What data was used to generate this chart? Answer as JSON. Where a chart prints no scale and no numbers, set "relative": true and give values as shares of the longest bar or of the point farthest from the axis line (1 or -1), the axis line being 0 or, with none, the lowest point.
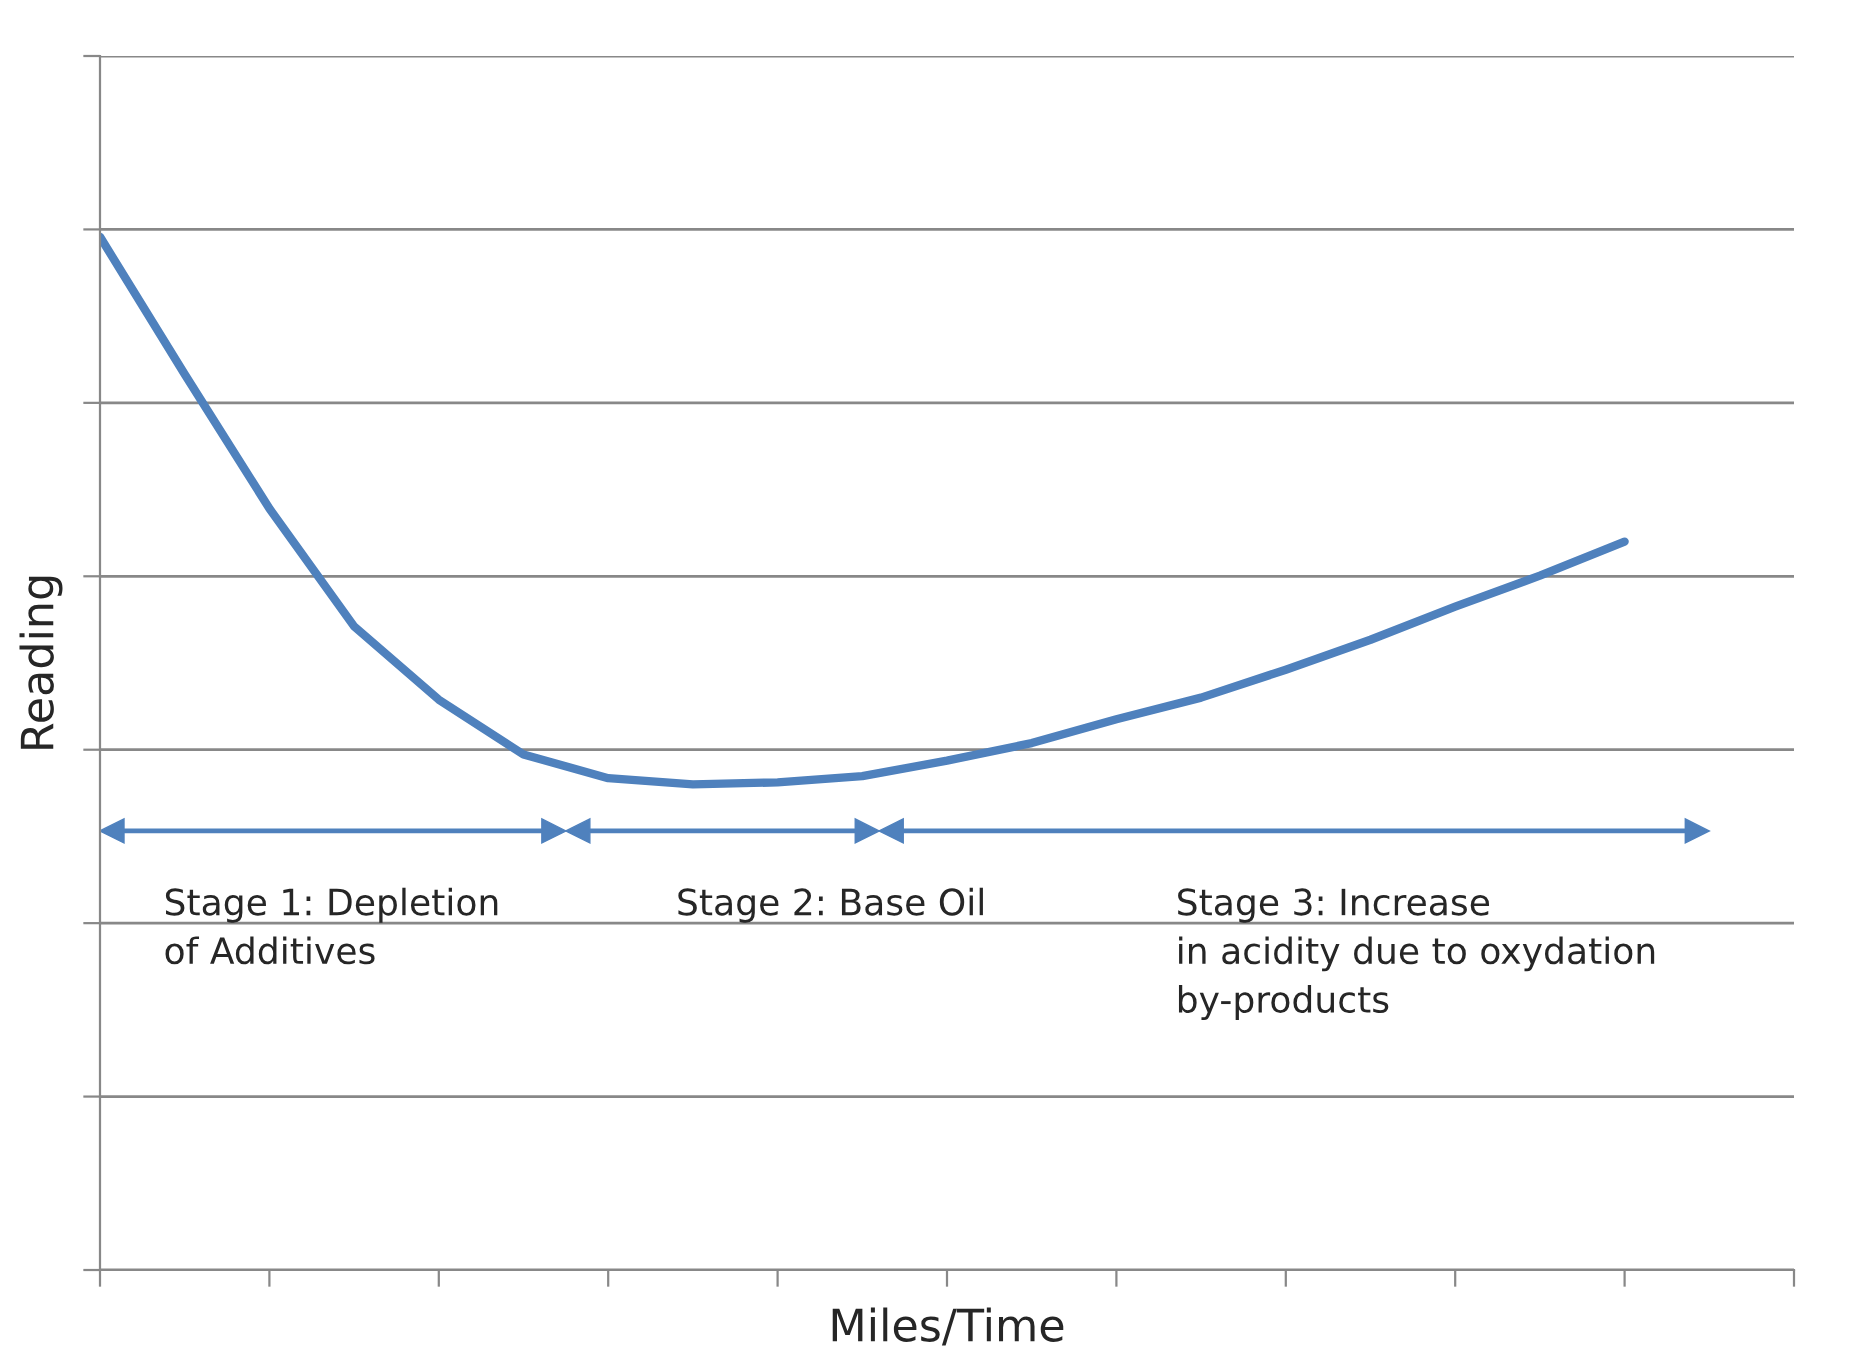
{
  "chart_data": {
    "type": "line",
    "relative": true,
    "xlabel": "Miles/Time",
    "ylabel": "Reading",
    "grid": "y",
    "marker": "none",
    "line_style": "solid",
    "categories": [
      null,
      null,
      null,
      null,
      null,
      null,
      null,
      null,
      null,
      null,
      null,
      null,
      null,
      null,
      null,
      null,
      null,
      null,
      null,
      null,
      null
    ],
    "series": [
      {
        "color": "#4f81bd",
        "values": [
          1,
          0.867,
          0.737,
          0.623,
          0.552,
          0.499,
          0.476,
          0.47,
          0.472,
          0.478,
          0.493,
          0.51,
          0.533,
          0.554,
          0.581,
          0.61,
          0.642,
          0.672,
          0.705,
          null,
          null
        ]
      }
    ],
    "annotations": [
      "Stage 1: Depletion\nof Additives",
      "Stage 2: Base Oil",
      "Stage 3: Increase\nin acidity due to oxydation\nby-products"
    ]
  }
}
